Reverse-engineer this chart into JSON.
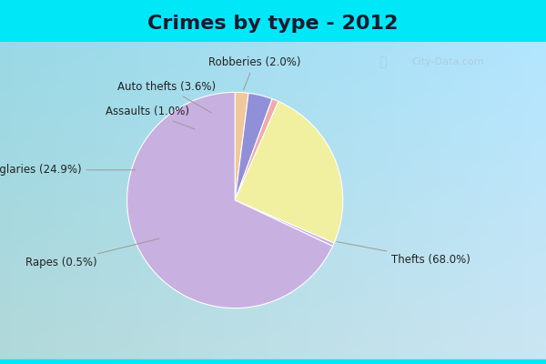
{
  "title": "Crimes by type - 2012",
  "labels": [
    "Thefts",
    "Burglaries",
    "Rapes",
    "Assaults",
    "Auto thefts",
    "Robberies"
  ],
  "values": [
    68.0,
    24.9,
    0.5,
    1.0,
    3.6,
    2.0
  ],
  "colors": [
    "#c8b0e0",
    "#f0f0a0",
    "#c8b0e0",
    "#f0aaaa",
    "#9090d8",
    "#f0c89a"
  ],
  "title_fontsize": 16,
  "title_color": "#1a1a2e",
  "cyan_strip_color": "#00e0f0",
  "bg_gradient_start": "#b0d8c0",
  "bg_gradient_end": "#d0e8f8",
  "startangle": 90,
  "watermark": "City-Data.com"
}
